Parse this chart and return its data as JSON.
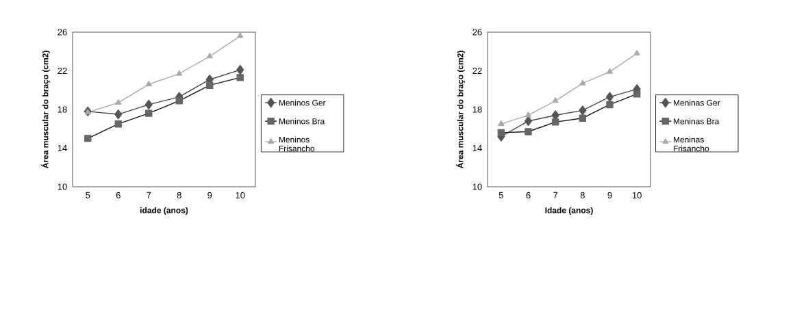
{
  "chart_data": [
    {
      "type": "line",
      "xlabel": "idade (anos)",
      "ylabel": "Área muscular do braço (cm2)",
      "x": [
        5,
        6,
        7,
        8,
        9,
        10
      ],
      "xlim": [
        4.5,
        10.5
      ],
      "xticks": [
        5,
        6,
        7,
        8,
        9,
        10
      ],
      "ylim": [
        10,
        26
      ],
      "yticks": [
        10,
        14,
        18,
        22,
        26
      ],
      "grid": false,
      "legend": "right",
      "series": [
        {
          "name": "Meninos Ger",
          "color": "#555555",
          "marker": "diamond",
          "values": [
            17.8,
            17.5,
            18.5,
            19.3,
            21.1,
            22.1
          ]
        },
        {
          "name": "Meninos Bra",
          "color": "#666666",
          "marker": "square",
          "values": [
            15.0,
            16.5,
            17.6,
            18.9,
            20.5,
            21.3
          ]
        },
        {
          "name": "Meninos Frisancho",
          "color": "#aaaaaa",
          "marker": "triangle",
          "values": [
            17.7,
            18.7,
            20.6,
            21.7,
            23.5,
            25.6
          ]
        }
      ]
    },
    {
      "type": "line",
      "xlabel": "Idade (anos)",
      "ylabel": "Área muscular do braço (cm2)",
      "x": [
        5,
        6,
        7,
        8,
        9,
        10
      ],
      "xlim": [
        4.5,
        10.5
      ],
      "xticks": [
        5,
        6,
        7,
        8,
        9,
        10
      ],
      "ylim": [
        10,
        26
      ],
      "yticks": [
        10,
        14,
        18,
        22,
        26
      ],
      "grid": false,
      "legend": "right",
      "series": [
        {
          "name": "Meninas Ger",
          "color": "#555555",
          "marker": "diamond",
          "values": [
            15.2,
            16.8,
            17.4,
            17.9,
            19.3,
            20.1
          ]
        },
        {
          "name": "Meninas Bra",
          "color": "#666666",
          "marker": "square",
          "values": [
            15.6,
            15.7,
            16.7,
            17.1,
            18.5,
            19.6
          ]
        },
        {
          "name": "Meninas Frisancho",
          "color": "#aaaaaa",
          "marker": "triangle",
          "values": [
            16.5,
            17.4,
            18.9,
            20.7,
            21.9,
            23.8
          ]
        }
      ]
    }
  ]
}
